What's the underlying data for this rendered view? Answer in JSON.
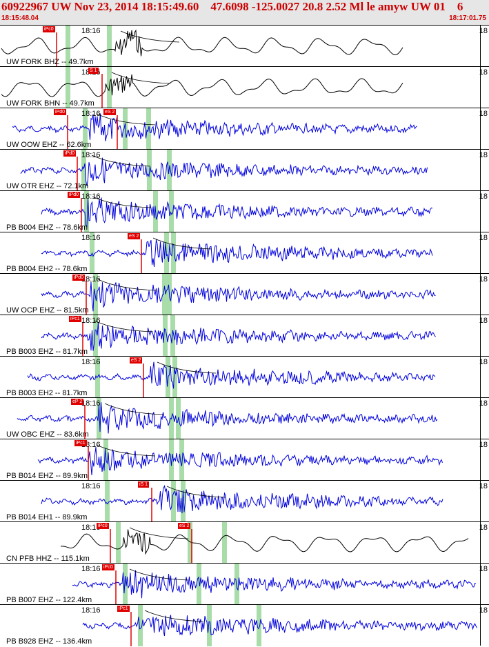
{
  "header": {
    "title": "60922967 UW Nov 23, 2014 18:15:49.60    47.6098 -125.0027 20.8 2.52 Ml le amyw UW 01    6",
    "start_time": "18:15:48.04",
    "end_time": "18:17:01.75"
  },
  "colors": {
    "header_text": "#cc0000",
    "pick": "#e00000",
    "trace_blue": "#0000dd",
    "trace_black": "#000000",
    "window": "#a8dca8"
  },
  "traces": [
    {
      "label": "UW FORK BHZ -- 49.7km",
      "tick": "18:16",
      "edge": "18",
      "pick": "iPc0",
      "color": "black"
    },
    {
      "label": "UW FORK BHN -- 49.7km",
      "tick": "18:16",
      "edge": "18",
      "pick": "S 1",
      "color": "black"
    },
    {
      "label": "UW OOW EHZ -- 62.6km",
      "tick": "18:16",
      "edge": "18",
      "pick": "iPd0",
      "pick2": "eS 2",
      "color": "blue"
    },
    {
      "label": "UW OTR EHZ -- 72.1km",
      "tick": "18:16",
      "edge": "18",
      "pick": "iPd0",
      "color": "blue"
    },
    {
      "label": "PB B004 EHZ -- 78.6km",
      "tick": "18:16",
      "edge": "18",
      "pick": "iPd0",
      "color": "blue"
    },
    {
      "label": "PB B004 EH2 -- 78.6km",
      "tick": "18:16",
      "edge": "18",
      "pick": "eS 2",
      "color": "blue"
    },
    {
      "label": "UW OCP EHZ -- 81.5km",
      "tick": "18:16",
      "edge": "18",
      "pick": "iPd0",
      "color": "blue"
    },
    {
      "label": "PB B003 EHZ -- 81.7km",
      "tick": "18:16",
      "edge": "18",
      "pick": "iPc1",
      "color": "blue"
    },
    {
      "label": "PB B003 EH2 -- 81.7km",
      "tick": "18:16",
      "edge": "18",
      "pick": "eS 2",
      "color": "blue"
    },
    {
      "label": "UW OBC EHZ -- 83.6km",
      "tick": "18:16",
      "edge": "18",
      "pick": "eP 2",
      "color": "blue"
    },
    {
      "label": "PB B014 EHZ -- 89.9km",
      "tick": "18:16",
      "edge": "18",
      "pick": "iPc1",
      "color": "blue"
    },
    {
      "label": "PB B014 EH1 -- 89.9km",
      "tick": "18:16",
      "edge": "18",
      "pick": "iS 1",
      "color": "blue"
    },
    {
      "label": "CN PFB HHZ -- 115.1km",
      "tick": "18:16",
      "edge": "18",
      "pick": "iPc0",
      "pick2": "eS 2",
      "color": "black"
    },
    {
      "label": "PB B007 EHZ -- 122.4km",
      "tick": "18:16",
      "edge": "18",
      "pick": "iPc0",
      "color": "blue"
    },
    {
      "label": "PB B928 EHZ -- 136.4km",
      "tick": "18:16",
      "edge": "18",
      "pick": "iPc1",
      "color": "blue"
    }
  ]
}
